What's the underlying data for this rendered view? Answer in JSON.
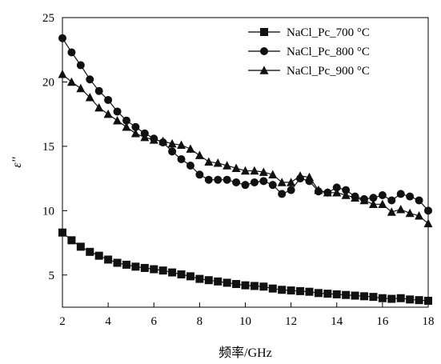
{
  "chart_data": {
    "type": "line",
    "title": "",
    "xlabel": "频率/GHz",
    "ylabel": "ε''",
    "xlim": [
      2,
      18
    ],
    "ylim": [
      2.5,
      25
    ],
    "xticks": [
      2,
      4,
      6,
      8,
      10,
      12,
      14,
      16,
      18
    ],
    "yticks": [
      5,
      10,
      15,
      20,
      25
    ],
    "grid": false,
    "legend_position": "top-right",
    "series": [
      {
        "name": "NaCl_Pc_700 °C",
        "marker": "square",
        "color": "#111111",
        "points": [
          [
            2.0,
            8.3
          ],
          [
            2.4,
            7.7
          ],
          [
            2.8,
            7.2
          ],
          [
            3.2,
            6.8
          ],
          [
            3.6,
            6.5
          ],
          [
            4.0,
            6.2
          ],
          [
            4.4,
            5.95
          ],
          [
            4.8,
            5.8
          ],
          [
            5.2,
            5.65
          ],
          [
            5.6,
            5.55
          ],
          [
            6.0,
            5.45
          ],
          [
            6.4,
            5.35
          ],
          [
            6.8,
            5.2
          ],
          [
            7.2,
            5.05
          ],
          [
            7.6,
            4.9
          ],
          [
            8.0,
            4.7
          ],
          [
            8.4,
            4.6
          ],
          [
            8.8,
            4.5
          ],
          [
            9.2,
            4.4
          ],
          [
            9.6,
            4.3
          ],
          [
            10.0,
            4.2
          ],
          [
            10.4,
            4.15
          ],
          [
            10.8,
            4.1
          ],
          [
            11.2,
            3.95
          ],
          [
            11.6,
            3.85
          ],
          [
            12.0,
            3.8
          ],
          [
            12.4,
            3.75
          ],
          [
            12.8,
            3.7
          ],
          [
            13.2,
            3.6
          ],
          [
            13.6,
            3.55
          ],
          [
            14.0,
            3.5
          ],
          [
            14.4,
            3.45
          ],
          [
            14.8,
            3.4
          ],
          [
            15.2,
            3.35
          ],
          [
            15.6,
            3.3
          ],
          [
            16.0,
            3.2
          ],
          [
            16.4,
            3.15
          ],
          [
            16.8,
            3.2
          ],
          [
            17.2,
            3.1
          ],
          [
            17.6,
            3.05
          ],
          [
            18.0,
            3.0
          ]
        ]
      },
      {
        "name": "NaCl_Pc_800 °C",
        "marker": "circle",
        "color": "#111111",
        "points": [
          [
            2.0,
            23.4
          ],
          [
            2.4,
            22.3
          ],
          [
            2.8,
            21.3
          ],
          [
            3.2,
            20.2
          ],
          [
            3.6,
            19.3
          ],
          [
            4.0,
            18.6
          ],
          [
            4.4,
            17.7
          ],
          [
            4.8,
            17.0
          ],
          [
            5.2,
            16.5
          ],
          [
            5.6,
            16.0
          ],
          [
            6.0,
            15.6
          ],
          [
            6.4,
            15.3
          ],
          [
            6.8,
            14.6
          ],
          [
            7.2,
            14.0
          ],
          [
            7.6,
            13.5
          ],
          [
            8.0,
            12.8
          ],
          [
            8.4,
            12.4
          ],
          [
            8.8,
            12.4
          ],
          [
            9.2,
            12.4
          ],
          [
            9.6,
            12.2
          ],
          [
            10.0,
            12.0
          ],
          [
            10.4,
            12.2
          ],
          [
            10.8,
            12.3
          ],
          [
            11.2,
            12.0
          ],
          [
            11.6,
            11.3
          ],
          [
            12.0,
            11.6
          ],
          [
            12.4,
            12.5
          ],
          [
            12.8,
            12.3
          ],
          [
            13.2,
            11.5
          ],
          [
            13.6,
            11.4
          ],
          [
            14.0,
            11.8
          ],
          [
            14.4,
            11.6
          ],
          [
            14.8,
            11.1
          ],
          [
            15.2,
            10.9
          ],
          [
            15.6,
            11.0
          ],
          [
            16.0,
            11.2
          ],
          [
            16.4,
            10.8
          ],
          [
            16.8,
            11.3
          ],
          [
            17.2,
            11.1
          ],
          [
            17.6,
            10.8
          ],
          [
            18.0,
            10.0
          ]
        ]
      },
      {
        "name": "NaCl_Pc_900 °C",
        "marker": "triangle",
        "color": "#111111",
        "points": [
          [
            2.0,
            20.6
          ],
          [
            2.4,
            20.0
          ],
          [
            2.8,
            19.5
          ],
          [
            3.2,
            18.8
          ],
          [
            3.6,
            18.0
          ],
          [
            4.0,
            17.5
          ],
          [
            4.4,
            17.0
          ],
          [
            4.8,
            16.5
          ],
          [
            5.2,
            16.0
          ],
          [
            5.6,
            15.7
          ],
          [
            6.0,
            15.5
          ],
          [
            6.4,
            15.4
          ],
          [
            6.8,
            15.2
          ],
          [
            7.2,
            15.1
          ],
          [
            7.6,
            14.8
          ],
          [
            8.0,
            14.3
          ],
          [
            8.4,
            13.8
          ],
          [
            8.8,
            13.7
          ],
          [
            9.2,
            13.5
          ],
          [
            9.6,
            13.3
          ],
          [
            10.0,
            13.1
          ],
          [
            10.4,
            13.1
          ],
          [
            10.8,
            13.0
          ],
          [
            11.2,
            12.8
          ],
          [
            11.6,
            12.2
          ],
          [
            12.0,
            12.2
          ],
          [
            12.4,
            12.7
          ],
          [
            12.8,
            12.6
          ],
          [
            13.2,
            11.6
          ],
          [
            13.6,
            11.4
          ],
          [
            14.0,
            11.4
          ],
          [
            14.4,
            11.2
          ],
          [
            14.8,
            11.0
          ],
          [
            15.2,
            10.8
          ],
          [
            15.6,
            10.5
          ],
          [
            16.0,
            10.5
          ],
          [
            16.4,
            9.9
          ],
          [
            16.8,
            10.1
          ],
          [
            17.2,
            9.8
          ],
          [
            17.6,
            9.6
          ],
          [
            18.0,
            9.0
          ]
        ]
      }
    ]
  }
}
